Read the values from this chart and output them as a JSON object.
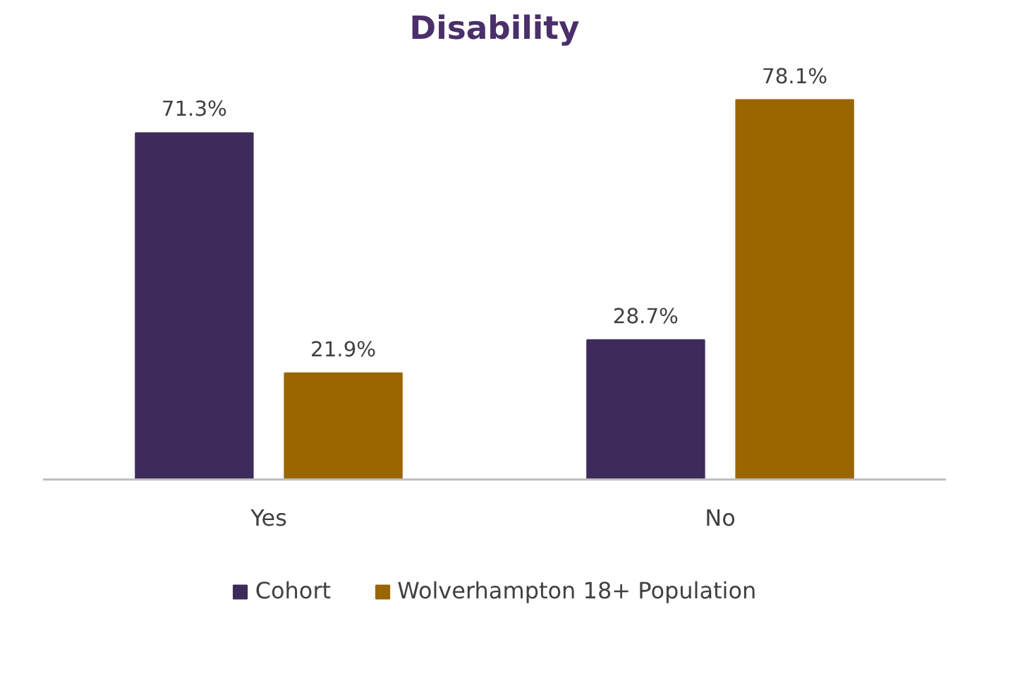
{
  "chart_data": {
    "type": "bar",
    "title": "Disability",
    "categories": [
      "Yes",
      "No"
    ],
    "series": [
      {
        "name": "Cohort",
        "color": "#3f2b5b",
        "values": [
          71.3,
          28.7
        ],
        "value_labels": [
          "71.3%",
          "28.7%"
        ]
      },
      {
        "name": "Wolverhampton 18+ Population",
        "color": "#996600",
        "values": [
          21.9,
          78.1
        ],
        "value_labels": [
          "21.9%",
          "78.1%"
        ]
      }
    ],
    "legend": "bottom"
  }
}
